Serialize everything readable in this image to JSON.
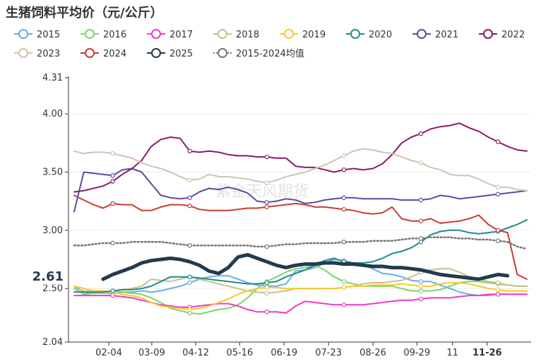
{
  "title": "生猪饲料平均价（元/公斤）",
  "watermark": "紫金天风期货",
  "chart_data": {
    "type": "line",
    "ylim": [
      2.04,
      4.31
    ],
    "y_ticks": [
      "4.31",
      "4.00",
      "3.50",
      "3.00",
      "2.50",
      "2.04"
    ],
    "x_ticks": [
      "02-04",
      "03-09",
      "04-12",
      "05-16",
      "06-19",
      "07-23",
      "08-26",
      "09-29",
      "11",
      "11-26"
    ],
    "x_tick_pos": [
      0.087,
      0.18,
      0.275,
      0.37,
      0.466,
      0.562,
      0.658,
      0.753,
      0.83,
      0.905
    ],
    "highlight_label": "2.61",
    "highlight_value": 2.61,
    "series": [
      {
        "name": "2015",
        "color": "#6aaee0",
        "values": [
          2.52,
          2.47,
          2.46,
          2.46,
          2.46,
          2.47,
          2.47,
          2.48,
          2.47,
          2.48,
          2.5,
          2.52,
          2.55,
          2.58,
          2.6,
          2.61,
          2.61,
          2.58,
          2.55,
          2.53,
          2.52,
          2.52,
          2.54,
          2.65,
          2.66,
          2.68,
          2.72,
          2.75,
          2.74,
          2.72,
          2.7,
          2.67,
          2.63,
          2.62,
          2.6,
          2.57,
          2.56,
          2.56,
          2.53,
          2.5,
          2.47,
          2.45,
          2.44,
          2.44,
          2.45,
          2.45,
          2.45,
          2.45
        ]
      },
      {
        "name": "2016",
        "color": "#7ed36a",
        "values": [
          2.5,
          2.45,
          2.46,
          2.47,
          2.47,
          2.47,
          2.46,
          2.45,
          2.42,
          2.38,
          2.33,
          2.31,
          2.29,
          2.28,
          2.3,
          2.32,
          2.33,
          2.36,
          2.42,
          2.5,
          2.56,
          2.6,
          2.64,
          2.67,
          2.68,
          2.7,
          2.66,
          2.6,
          2.56,
          2.54,
          2.52,
          2.52,
          2.52,
          2.52,
          2.5,
          2.48,
          2.48,
          2.48,
          2.49,
          2.52,
          2.55,
          2.56,
          2.56,
          2.55,
          2.54,
          2.53,
          2.52,
          2.52
        ]
      },
      {
        "name": "2017",
        "color": "#f23ac4",
        "values": [
          2.44,
          2.44,
          2.44,
          2.44,
          2.44,
          2.43,
          2.42,
          2.4,
          2.38,
          2.36,
          2.35,
          2.34,
          2.34,
          2.35,
          2.36,
          2.37,
          2.37,
          2.35,
          2.32,
          2.3,
          2.3,
          2.3,
          2.29,
          2.35,
          2.39,
          2.38,
          2.37,
          2.36,
          2.36,
          2.36,
          2.36,
          2.37,
          2.38,
          2.39,
          2.4,
          2.4,
          2.41,
          2.42,
          2.42,
          2.42,
          2.43,
          2.44,
          2.44,
          2.45,
          2.45,
          2.45,
          2.45,
          2.45
        ]
      },
      {
        "name": "2018",
        "color": "#c8c08a",
        "values": [
          2.5,
          2.48,
          2.47,
          2.46,
          2.47,
          2.49,
          2.5,
          2.52,
          2.58,
          2.57,
          2.56,
          2.58,
          2.6,
          2.58,
          2.56,
          2.54,
          2.52,
          2.5,
          2.48,
          2.47,
          2.46,
          2.47,
          2.48,
          2.5,
          2.5,
          2.5,
          2.5,
          2.5,
          2.51,
          2.52,
          2.54,
          2.55,
          2.55,
          2.56,
          2.57,
          2.6,
          2.64,
          2.66,
          2.67,
          2.67,
          2.64,
          2.6,
          2.58,
          2.56,
          2.55,
          2.53,
          2.52,
          2.52
        ]
      },
      {
        "name": "2019",
        "color": "#f7c92e",
        "values": [
          2.52,
          2.5,
          2.48,
          2.48,
          2.47,
          2.45,
          2.44,
          2.42,
          2.38,
          2.35,
          2.34,
          2.33,
          2.32,
          2.33,
          2.35,
          2.38,
          2.41,
          2.45,
          2.48,
          2.5,
          2.51,
          2.51,
          2.5,
          2.5,
          2.5,
          2.5,
          2.5,
          2.5,
          2.51,
          2.52,
          2.52,
          2.53,
          2.53,
          2.53,
          2.54,
          2.53,
          2.52,
          2.52,
          2.54,
          2.55,
          2.55,
          2.54,
          2.52,
          2.5,
          2.49,
          2.48,
          2.48,
          2.48
        ]
      },
      {
        "name": "2020",
        "color": "#1f8c8c",
        "values": [
          2.47,
          2.47,
          2.47,
          2.47,
          2.48,
          2.49,
          2.49,
          2.5,
          2.52,
          2.56,
          2.6,
          2.6,
          2.6,
          2.59,
          2.58,
          2.57,
          2.56,
          2.55,
          2.54,
          2.54,
          2.55,
          2.56,
          2.6,
          2.63,
          2.66,
          2.7,
          2.74,
          2.76,
          2.73,
          2.72,
          2.72,
          2.73,
          2.76,
          2.8,
          2.82,
          2.85,
          2.9,
          2.96,
          2.99,
          3.0,
          3.0,
          2.98,
          2.97,
          2.98,
          2.99,
          3.02,
          3.05,
          3.09
        ]
      },
      {
        "name": "2021",
        "color": "#5a4aa8",
        "values": [
          3.16,
          3.5,
          3.49,
          3.48,
          3.47,
          3.52,
          3.53,
          3.5,
          3.4,
          3.3,
          3.28,
          3.27,
          3.28,
          3.33,
          3.36,
          3.35,
          3.37,
          3.35,
          3.32,
          3.25,
          3.24,
          3.25,
          3.27,
          3.26,
          3.23,
          3.24,
          3.26,
          3.27,
          3.28,
          3.28,
          3.27,
          3.27,
          3.27,
          3.27,
          3.26,
          3.26,
          3.26,
          3.27,
          3.3,
          3.29,
          3.27,
          3.28,
          3.29,
          3.3,
          3.31,
          3.32,
          3.33,
          3.34
        ]
      },
      {
        "name": "2022",
        "color": "#8a1d6a",
        "values": [
          3.33,
          3.34,
          3.36,
          3.38,
          3.42,
          3.48,
          3.53,
          3.6,
          3.72,
          3.78,
          3.8,
          3.79,
          3.68,
          3.67,
          3.68,
          3.67,
          3.65,
          3.64,
          3.64,
          3.63,
          3.63,
          3.62,
          3.62,
          3.55,
          3.54,
          3.54,
          3.52,
          3.5,
          3.52,
          3.53,
          3.52,
          3.53,
          3.57,
          3.65,
          3.75,
          3.8,
          3.83,
          3.87,
          3.89,
          3.9,
          3.92,
          3.88,
          3.85,
          3.8,
          3.76,
          3.72,
          3.69,
          3.68
        ]
      },
      {
        "name": "2023",
        "color": "#d1c3b1",
        "values": [
          3.68,
          3.66,
          3.67,
          3.67,
          3.66,
          3.64,
          3.62,
          3.58,
          3.55,
          3.53,
          3.5,
          3.46,
          3.43,
          3.44,
          3.48,
          3.46,
          3.46,
          3.45,
          3.44,
          3.42,
          3.41,
          3.43,
          3.46,
          3.48,
          3.5,
          3.53,
          3.56,
          3.6,
          3.64,
          3.68,
          3.7,
          3.69,
          3.67,
          3.66,
          3.63,
          3.6,
          3.58,
          3.54,
          3.52,
          3.48,
          3.47,
          3.47,
          3.44,
          3.4,
          3.37,
          3.37,
          3.35,
          3.34
        ]
      },
      {
        "name": "2024",
        "color": "#cc3b30",
        "values": [
          3.3,
          3.26,
          3.22,
          3.19,
          3.23,
          3.22,
          3.22,
          3.17,
          3.17,
          3.2,
          3.22,
          3.22,
          3.21,
          3.18,
          3.17,
          3.17,
          3.17,
          3.18,
          3.19,
          3.19,
          3.2,
          3.21,
          3.22,
          3.23,
          3.22,
          3.2,
          3.2,
          3.19,
          3.18,
          3.17,
          3.15,
          3.14,
          3.15,
          3.2,
          3.1,
          3.08,
          3.08,
          3.1,
          3.06,
          3.07,
          3.08,
          3.1,
          3.13,
          3.05,
          3.0,
          2.98,
          2.62,
          2.58
        ]
      },
      {
        "name": "2025",
        "color": "#243a4e",
        "values": [
          2.58,
          2.62,
          2.65,
          2.68,
          2.72,
          2.74,
          2.75,
          2.76,
          2.75,
          2.73,
          2.7,
          2.65,
          2.63,
          2.68,
          2.77,
          2.79,
          2.76,
          2.73,
          2.7,
          2.68,
          2.7,
          2.71,
          2.71,
          2.72,
          2.72,
          2.71,
          2.71,
          2.7,
          2.69,
          2.69,
          2.68,
          2.68,
          2.67,
          2.66,
          2.64,
          2.62,
          2.61,
          2.6,
          2.59,
          2.58,
          2.6,
          2.62,
          2.61
        ]
      },
      {
        "name": "2015-2024均值",
        "color": "#777777",
        "values": [
          2.87,
          2.87,
          2.88,
          2.89,
          2.89,
          2.89,
          2.9,
          2.9,
          2.9,
          2.9,
          2.89,
          2.88,
          2.87,
          2.87,
          2.87,
          2.87,
          2.87,
          2.87,
          2.87,
          2.86,
          2.86,
          2.87,
          2.88,
          2.88,
          2.89,
          2.89,
          2.89,
          2.89,
          2.9,
          2.9,
          2.9,
          2.91,
          2.91,
          2.91,
          2.92,
          2.93,
          2.93,
          2.94,
          2.94,
          2.94,
          2.93,
          2.93,
          2.92,
          2.92,
          2.91,
          2.9,
          2.86,
          2.84
        ]
      }
    ]
  }
}
